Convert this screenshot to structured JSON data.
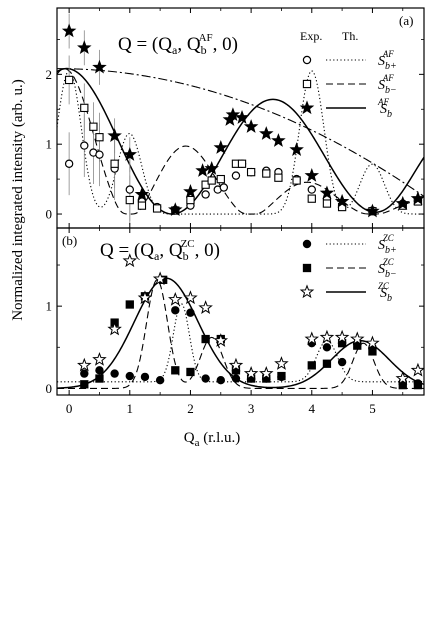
{
  "chart_data": {
    "type": "scatter",
    "x_label_main": "Q",
    "x_label_sub": "a",
    "x_label_rest": " (r.l.u.)",
    "y_label": "Normalized integrated intensity (arb. u.)",
    "x_ticks": [
      "0",
      "1",
      "2",
      "3",
      "4",
      "5"
    ],
    "xlim": [
      -0.2,
      5.85
    ],
    "legend_header_exp": "Exp.",
    "legend_header_th": "Th.",
    "panels": [
      {
        "tag": "(a)",
        "title_main": "Q = (Q",
        "title_a": "a",
        "title_mid": ", Q",
        "title_b": "b",
        "title_sup": "AF",
        "title_end": ", 0)",
        "ylim": [
          -0.2,
          2.95
        ],
        "y_ticks": [
          "0",
          "1",
          "2"
        ],
        "legend": [
          {
            "symbol": "circle-open",
            "line": "dotted",
            "label": "S",
            "sup": "AF",
            "sub": "b+"
          },
          {
            "symbol": "square-open",
            "line": "dashed",
            "label": "S",
            "sup": "AF",
            "sub": "b−"
          },
          {
            "symbol": "star-filled",
            "line": "solid",
            "label": "S",
            "sup": "AF",
            "sub": "b"
          }
        ],
        "series": [
          {
            "symbol": "circle-open",
            "points": [
              [
                0.0,
                0.72
              ],
              [
                0.25,
                0.98
              ],
              [
                0.4,
                0.88
              ],
              [
                0.5,
                0.85
              ],
              [
                0.75,
                0.65
              ],
              [
                1.0,
                0.35
              ],
              [
                1.2,
                0.18
              ],
              [
                1.45,
                0.1
              ],
              [
                1.75,
                0.06
              ],
              [
                2.0,
                0.12
              ],
              [
                2.25,
                0.28
              ],
              [
                2.45,
                0.35
              ],
              [
                2.55,
                0.38
              ],
              [
                2.75,
                0.55
              ],
              [
                2.85,
                0.72
              ],
              [
                3.0,
                0.6
              ],
              [
                3.25,
                0.62
              ],
              [
                3.45,
                0.6
              ],
              [
                3.75,
                0.5
              ],
              [
                4.0,
                0.35
              ],
              [
                4.25,
                0.22
              ],
              [
                4.5,
                0.12
              ],
              [
                5.0,
                0.05
              ],
              [
                5.5,
                0.15
              ],
              [
                5.75,
                0.2
              ]
            ]
          },
          {
            "symbol": "square-open",
            "points": [
              [
                0.0,
                1.92
              ],
              [
                0.25,
                1.52
              ],
              [
                0.4,
                1.25
              ],
              [
                0.5,
                1.1
              ],
              [
                0.75,
                0.72
              ],
              [
                1.0,
                0.2
              ],
              [
                1.2,
                0.12
              ],
              [
                1.45,
                0.08
              ],
              [
                1.75,
                0.05
              ],
              [
                2.0,
                0.2
              ],
              [
                2.25,
                0.42
              ],
              [
                2.35,
                0.48
              ],
              [
                2.5,
                0.5
              ],
              [
                2.75,
                0.72
              ],
              [
                2.85,
                0.72
              ],
              [
                3.0,
                0.6
              ],
              [
                3.25,
                0.58
              ],
              [
                3.45,
                0.52
              ],
              [
                3.75,
                0.48
              ],
              [
                4.0,
                0.22
              ],
              [
                4.25,
                0.15
              ],
              [
                4.5,
                0.1
              ],
              [
                5.0,
                0.04
              ],
              [
                5.5,
                0.12
              ],
              [
                5.75,
                0.18
              ]
            ]
          },
          {
            "symbol": "star-filled",
            "points": [
              [
                0.0,
                2.62
              ],
              [
                0.25,
                2.38
              ],
              [
                0.5,
                2.1
              ],
              [
                0.75,
                1.12
              ],
              [
                1.0,
                0.85
              ],
              [
                1.2,
                0.28
              ],
              [
                1.75,
                0.06
              ],
              [
                2.0,
                0.32
              ],
              [
                2.2,
                0.62
              ],
              [
                2.35,
                0.65
              ],
              [
                2.5,
                0.95
              ],
              [
                2.65,
                1.35
              ],
              [
                2.7,
                1.42
              ],
              [
                2.85,
                1.38
              ],
              [
                3.0,
                1.25
              ],
              [
                3.25,
                1.15
              ],
              [
                3.45,
                1.05
              ],
              [
                3.75,
                0.92
              ],
              [
                4.0,
                0.55
              ],
              [
                4.25,
                0.3
              ],
              [
                4.5,
                0.18
              ],
              [
                5.0,
                0.04
              ],
              [
                5.5,
                0.15
              ],
              [
                5.75,
                0.22
              ]
            ]
          }
        ]
      },
      {
        "tag": "(b)",
        "title_main": "Q = (Q",
        "title_a": "a",
        "title_mid": ", Q",
        "title_b": "b",
        "title_sup": "ZC",
        "title_end": ", 0)",
        "ylim": [
          -0.08,
          1.95
        ],
        "y_ticks": [
          "0",
          "1"
        ],
        "legend": [
          {
            "symbol": "circle-filled",
            "line": "dotted",
            "label": "S",
            "sup": "ZC",
            "sub": "b+"
          },
          {
            "symbol": "square-filled",
            "line": "dashed",
            "label": "S",
            "sup": "ZC",
            "sub": "b−"
          },
          {
            "symbol": "star-open",
            "line": "solid",
            "label": "S",
            "sup": "ZC",
            "sub": "b"
          }
        ],
        "series": [
          {
            "symbol": "circle-filled",
            "points": [
              [
                0.25,
                0.18
              ],
              [
                0.5,
                0.22
              ],
              [
                0.75,
                0.18
              ],
              [
                1.0,
                0.15
              ],
              [
                1.25,
                0.14
              ],
              [
                1.5,
                0.1
              ],
              [
                1.75,
                0.95
              ],
              [
                2.0,
                0.92
              ],
              [
                2.25,
                0.12
              ],
              [
                2.5,
                0.1
              ],
              [
                2.75,
                0.12
              ],
              [
                3.0,
                0.12
              ],
              [
                3.25,
                0.12
              ],
              [
                3.5,
                0.14
              ],
              [
                4.0,
                0.55
              ],
              [
                4.25,
                0.5
              ],
              [
                4.5,
                0.32
              ],
              [
                4.75,
                0.55
              ],
              [
                5.0,
                0.5
              ],
              [
                5.5,
                0.08
              ],
              [
                5.75,
                0.06
              ]
            ]
          },
          {
            "symbol": "square-filled",
            "points": [
              [
                0.25,
                0.05
              ],
              [
                0.5,
                0.12
              ],
              [
                0.75,
                0.8
              ],
              [
                1.0,
                1.02
              ],
              [
                1.25,
                1.12
              ],
              [
                1.55,
                1.32
              ],
              [
                1.75,
                0.22
              ],
              [
                2.0,
                0.2
              ],
              [
                2.25,
                0.6
              ],
              [
                2.5,
                0.6
              ],
              [
                2.75,
                0.22
              ],
              [
                3.0,
                0.12
              ],
              [
                3.25,
                0.12
              ],
              [
                3.5,
                0.15
              ],
              [
                4.0,
                0.28
              ],
              [
                4.25,
                0.3
              ],
              [
                4.5,
                0.55
              ],
              [
                4.75,
                0.52
              ],
              [
                5.0,
                0.45
              ],
              [
                5.5,
                0.04
              ],
              [
                5.75,
                0.04
              ]
            ]
          },
          {
            "symbol": "star-open",
            "points": [
              [
                0.25,
                0.28
              ],
              [
                0.5,
                0.35
              ],
              [
                0.75,
                0.72
              ],
              [
                1.0,
                1.55
              ],
              [
                1.25,
                1.1
              ],
              [
                1.5,
                1.33
              ],
              [
                1.75,
                1.08
              ],
              [
                2.0,
                1.1
              ],
              [
                2.25,
                0.98
              ],
              [
                2.5,
                0.58
              ],
              [
                2.75,
                0.28
              ],
              [
                3.0,
                0.18
              ],
              [
                3.25,
                0.18
              ],
              [
                3.5,
                0.3
              ],
              [
                4.0,
                0.6
              ],
              [
                4.25,
                0.62
              ],
              [
                4.5,
                0.62
              ],
              [
                4.75,
                0.6
              ],
              [
                5.0,
                0.55
              ],
              [
                5.5,
                0.12
              ],
              [
                5.75,
                0.22
              ]
            ]
          }
        ]
      }
    ]
  }
}
